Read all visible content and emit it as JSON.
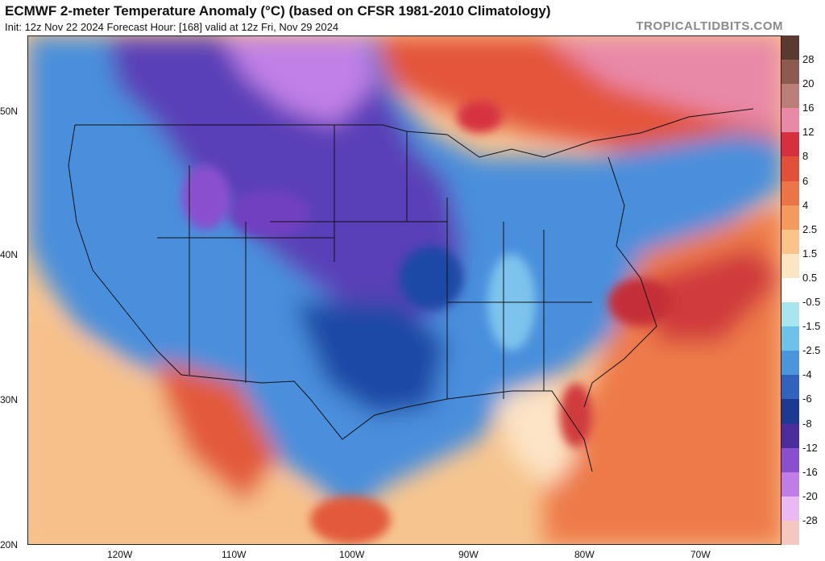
{
  "header": {
    "title": "ECMWF 2-meter Temperature Anomaly (°C) (based on CFSR 1981-2010 Climatology)",
    "subtitle": "Init: 12z Nov 22 2024   Forecast Hour: [168]   valid at 12z Fri, Nov 29 2024",
    "credit": "TROPICALTIDBITS.COM"
  },
  "map": {
    "lat_labels": [
      "50N",
      "40N",
      "30N",
      "20N"
    ],
    "lon_labels": [
      "120W",
      "110W",
      "100W",
      "90W",
      "80W",
      "70W"
    ]
  },
  "colorbar": {
    "labels": [
      "28",
      "20",
      "16",
      "12",
      "8",
      "6",
      "4",
      "2.5",
      "1.5",
      "0.5",
      "-0.5",
      "-1.5",
      "-2.5",
      "-4",
      "-6",
      "-8",
      "-12",
      "-16",
      "-20",
      "-28"
    ],
    "colors": [
      "#5a3a30",
      "#8c5a4e",
      "#b97f78",
      "#e889a8",
      "#d6303f",
      "#e2503a",
      "#ec7548",
      "#f39a5e",
      "#f8c48a",
      "#fbe6c4",
      "#ffffff",
      "#a7e6ee",
      "#6ec2ea",
      "#4a95dc",
      "#2f63be",
      "#1d3a93",
      "#4b2d9e",
      "#8a4fcf",
      "#c07de6",
      "#e9b9f2",
      "#f4c8c0"
    ]
  }
}
